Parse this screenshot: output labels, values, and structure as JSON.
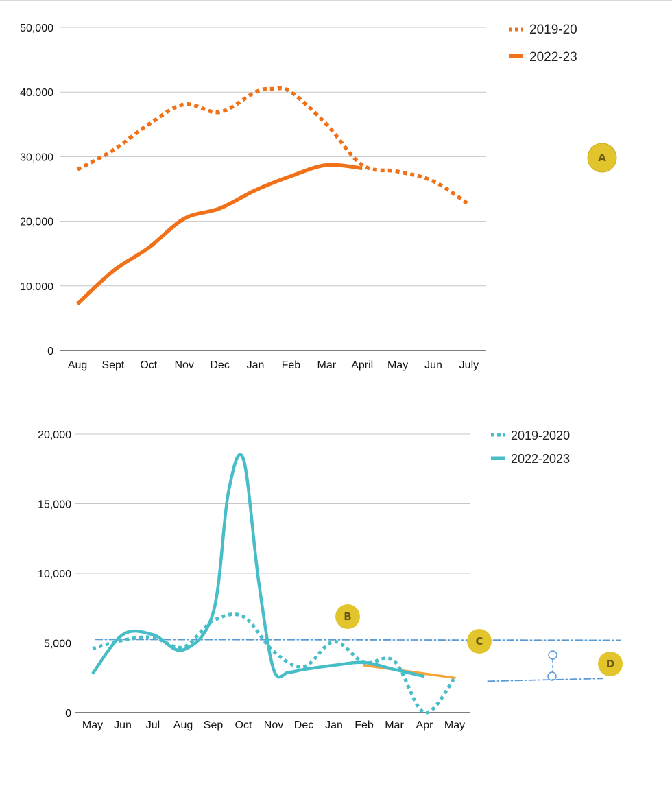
{
  "chart_data": [
    {
      "type": "line",
      "title": "",
      "xlabel": "",
      "ylabel": "",
      "categories": [
        "Aug",
        "Sept",
        "Oct",
        "Nov",
        "Dec",
        "Jan",
        "Feb",
        "Mar",
        "April",
        "May",
        "Jun",
        "July"
      ],
      "ylim": [
        0,
        50000
      ],
      "yticks": [
        0,
        10000,
        20000,
        30000,
        40000,
        50000
      ],
      "ytick_labels": [
        "0",
        "10,000",
        "20,000",
        "30,000",
        "40,000",
        "50,000"
      ],
      "grid": true,
      "legend_position": "top-right",
      "series": [
        {
          "name": "2019-20",
          "style": "dotted",
          "color": "#f07118",
          "x": [
            0,
            1,
            2,
            3,
            4,
            5,
            5.5,
            6,
            7,
            8,
            9,
            10,
            11
          ],
          "values": [
            28000,
            31000,
            35000,
            38100,
            36900,
            40000,
            40500,
            40000,
            35000,
            28700,
            27700,
            26200,
            22600
          ]
        },
        {
          "name": "2022-23",
          "style": "solid",
          "color": "#f07118",
          "x": [
            0,
            1,
            2,
            3,
            4,
            5,
            6,
            7,
            8
          ],
          "values": [
            7200,
            12300,
            15900,
            20400,
            22000,
            24800,
            27000,
            28700,
            28200
          ]
        }
      ],
      "annotations": [
        {
          "label": "A",
          "color": "#e2c52c"
        }
      ]
    },
    {
      "type": "line",
      "title": "",
      "xlabel": "",
      "ylabel": "",
      "categories": [
        "May",
        "Jun",
        "Jul",
        "Aug",
        "Sep",
        "Oct",
        "Nov",
        "Dec",
        "Jan",
        "Feb",
        "Mar",
        "Apr",
        "May"
      ],
      "ylim": [
        0,
        20000
      ],
      "yticks": [
        0,
        5000,
        10000,
        15000,
        20000
      ],
      "ytick_labels": [
        "0",
        "5,000",
        "10,000",
        "15,000",
        "20,000"
      ],
      "grid": true,
      "legend_position": "top-right",
      "series": [
        {
          "name": "2019-2020",
          "style": "dotted",
          "color": "#47bdc8",
          "x": [
            0,
            1,
            2,
            3,
            4,
            5,
            6,
            7,
            8,
            9,
            10,
            11,
            12
          ],
          "values": [
            4600,
            5200,
            5400,
            4700,
            6600,
            6900,
            4400,
            3300,
            5100,
            3600,
            3700,
            0,
            2500
          ]
        },
        {
          "name": "2022-2023",
          "style": "solid",
          "color": "#47bdc8",
          "x": [
            0,
            1,
            2,
            3,
            4,
            4.5,
            5,
            5.5,
            6,
            6.5,
            7,
            8,
            9,
            10,
            11
          ],
          "values": [
            2800,
            5600,
            5600,
            4500,
            7200,
            15800,
            18200,
            9500,
            3100,
            2900,
            3100,
            3400,
            3600,
            3100,
            2600
          ]
        }
      ],
      "overlays": [
        {
          "name": "trend-line",
          "color": "#f5a33a",
          "x": [
            9,
            12
          ],
          "values": [
            3400,
            2500
          ]
        },
        {
          "name": "reference-line-c",
          "color": "#5b9bd5",
          "x": [
            0.1,
            17.5
          ],
          "values": [
            5250,
            5200
          ]
        },
        {
          "name": "reference-line-d",
          "color": "#5b9bd5",
          "x": [
            13.1,
            16.9
          ],
          "values": [
            2250,
            2450
          ]
        }
      ],
      "annotations": [
        {
          "label": "B",
          "color": "#e2c52c"
        },
        {
          "label": "C",
          "color": "#e2c52c"
        },
        {
          "label": "D",
          "color": "#e2c52c"
        }
      ]
    }
  ]
}
